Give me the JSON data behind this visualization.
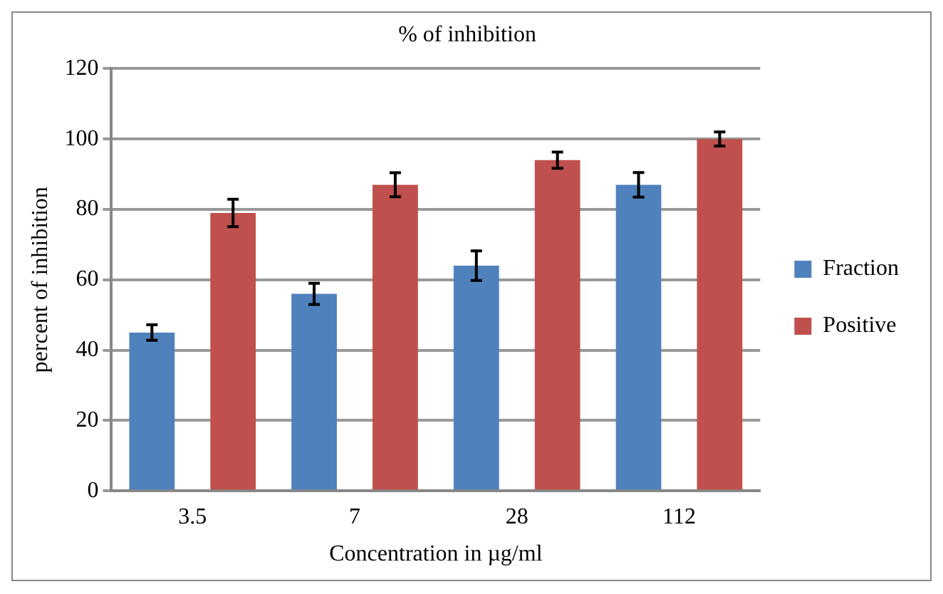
{
  "chart_data": {
    "type": "bar",
    "title": "% of inhibition",
    "xlabel": "Concentration in µg/ml",
    "ylabel": "percent of inhibition",
    "categories": [
      "3.5",
      "7",
      "28",
      "112"
    ],
    "series": [
      {
        "name": "Fraction",
        "color": "#4f81bd",
        "values": [
          45,
          56,
          64,
          87
        ],
        "errors": [
          2.2,
          3,
          4.2,
          3.5
        ]
      },
      {
        "name": "Positive",
        "color": "#c0504d",
        "values": [
          79,
          87,
          94,
          100
        ],
        "errors": [
          3.9,
          3.4,
          2.3,
          2
        ]
      }
    ],
    "ylim": [
      0,
      120
    ],
    "yticks": [
      0,
      20,
      40,
      60,
      80,
      100,
      120
    ],
    "grid": "y",
    "legend": "right"
  }
}
